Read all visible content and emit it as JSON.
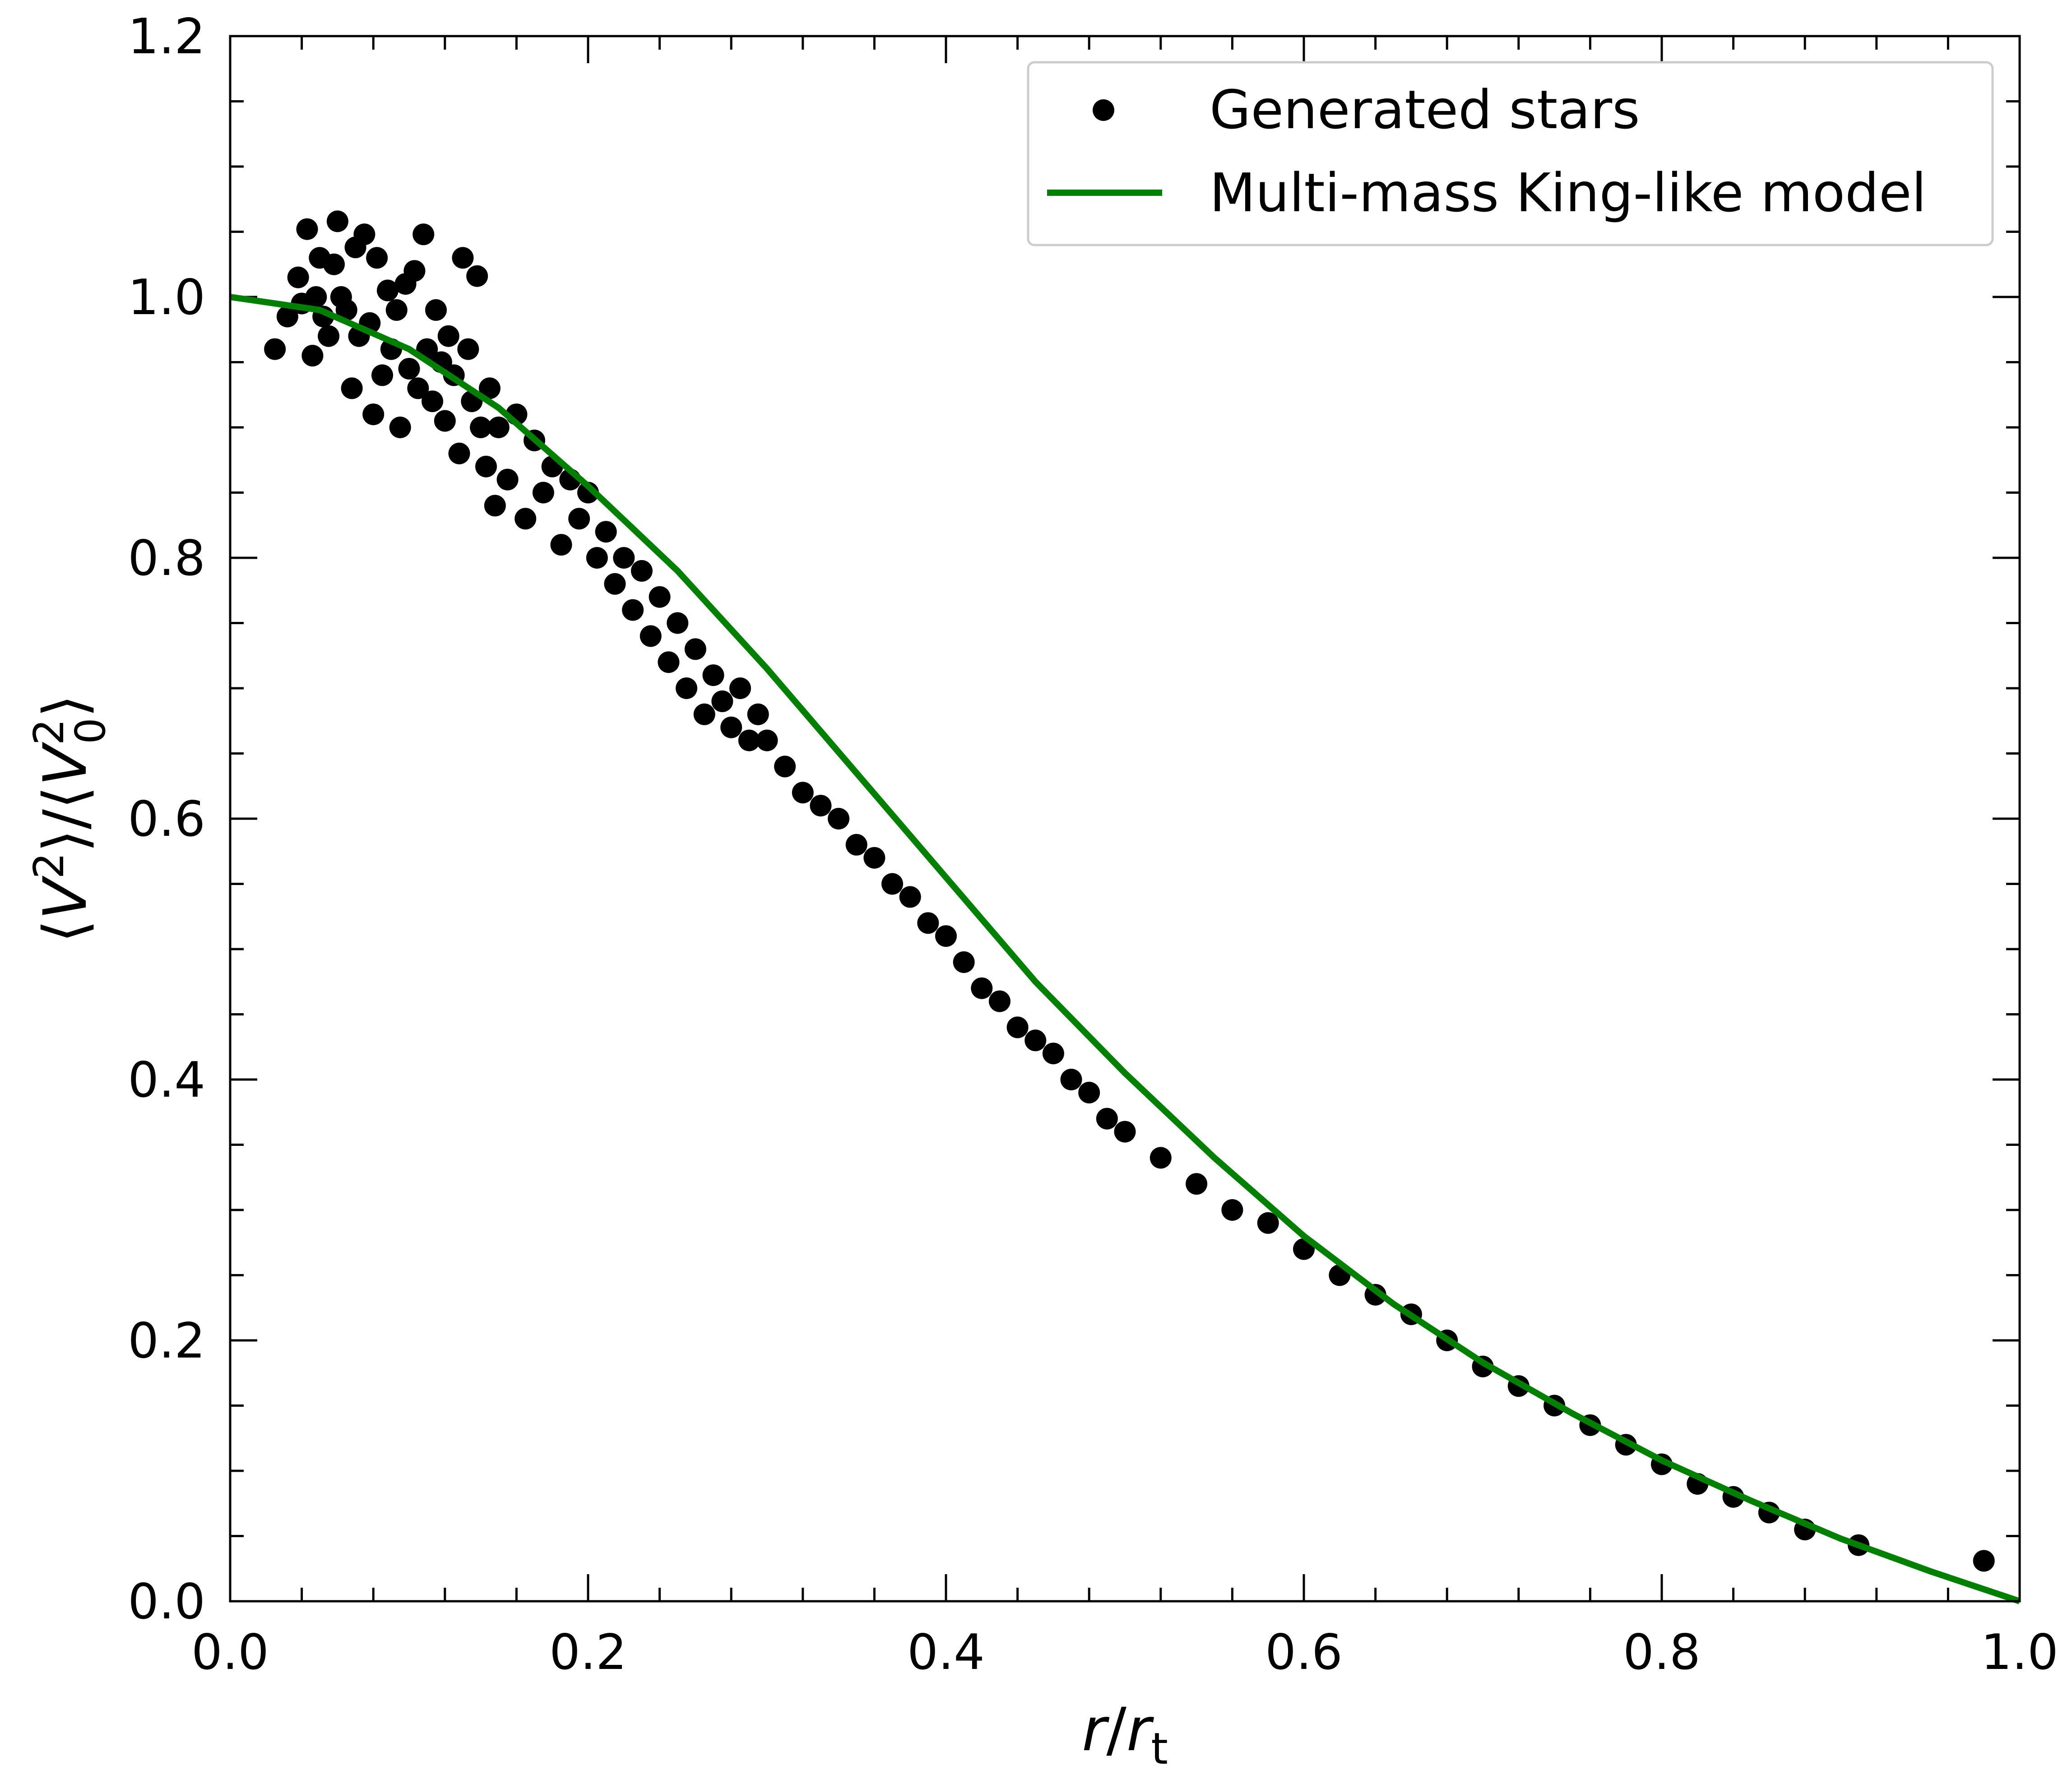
{
  "chart_data": {
    "type": "scatter",
    "title": "",
    "xlabel": "r/rt",
    "ylabel": "⟨V2⟩/⟨V02⟩",
    "xlim": [
      0.0,
      1.0
    ],
    "ylim": [
      0.0,
      1.2
    ],
    "x_ticks": [
      "0.0",
      "0.2",
      "0.4",
      "0.6",
      "0.8",
      "1.0"
    ],
    "y_ticks": [
      "0.0",
      "0.2",
      "0.4",
      "0.6",
      "0.8",
      "1.0",
      "1.2"
    ],
    "grid": false,
    "legend_position": "top-right",
    "colors": {
      "points": "#000000",
      "model": "#008000"
    },
    "series": [
      {
        "name": "Generated stars",
        "kind": "scatter",
        "x": [
          0.025,
          0.032,
          0.038,
          0.04,
          0.043,
          0.046,
          0.048,
          0.05,
          0.052,
          0.055,
          0.058,
          0.06,
          0.062,
          0.065,
          0.068,
          0.07,
          0.072,
          0.075,
          0.078,
          0.08,
          0.082,
          0.085,
          0.088,
          0.09,
          0.093,
          0.095,
          0.098,
          0.1,
          0.103,
          0.105,
          0.108,
          0.11,
          0.113,
          0.115,
          0.118,
          0.12,
          0.122,
          0.125,
          0.128,
          0.13,
          0.133,
          0.135,
          0.138,
          0.14,
          0.143,
          0.145,
          0.148,
          0.15,
          0.155,
          0.16,
          0.165,
          0.17,
          0.175,
          0.18,
          0.185,
          0.19,
          0.195,
          0.2,
          0.205,
          0.21,
          0.215,
          0.22,
          0.225,
          0.23,
          0.235,
          0.24,
          0.245,
          0.25,
          0.255,
          0.26,
          0.265,
          0.27,
          0.275,
          0.28,
          0.285,
          0.29,
          0.295,
          0.3,
          0.31,
          0.32,
          0.33,
          0.34,
          0.35,
          0.36,
          0.37,
          0.38,
          0.39,
          0.4,
          0.41,
          0.42,
          0.43,
          0.44,
          0.45,
          0.46,
          0.47,
          0.48,
          0.49,
          0.5,
          0.52,
          0.54,
          0.56,
          0.58,
          0.6,
          0.62,
          0.64,
          0.66,
          0.68,
          0.7,
          0.72,
          0.74,
          0.76,
          0.78,
          0.8,
          0.82,
          0.84,
          0.86,
          0.88,
          0.91,
          0.98
        ],
        "y": [
          0.96,
          0.985,
          1.015,
          0.995,
          1.052,
          0.955,
          1.0,
          1.03,
          0.985,
          0.97,
          1.025,
          1.058,
          1.0,
          0.99,
          0.93,
          1.038,
          0.97,
          1.048,
          0.98,
          0.91,
          1.03,
          0.94,
          1.005,
          0.96,
          0.99,
          0.9,
          1.01,
          0.945,
          1.02,
          0.93,
          1.048,
          0.96,
          0.92,
          0.99,
          0.95,
          0.905,
          0.97,
          0.94,
          0.88,
          1.03,
          0.96,
          0.92,
          1.016,
          0.9,
          0.87,
          0.93,
          0.84,
          0.9,
          0.86,
          0.91,
          0.83,
          0.89,
          0.85,
          0.87,
          0.81,
          0.86,
          0.83,
          0.85,
          0.8,
          0.82,
          0.78,
          0.8,
          0.76,
          0.79,
          0.74,
          0.77,
          0.72,
          0.75,
          0.7,
          0.73,
          0.68,
          0.71,
          0.69,
          0.67,
          0.7,
          0.66,
          0.68,
          0.66,
          0.64,
          0.62,
          0.61,
          0.6,
          0.58,
          0.57,
          0.55,
          0.54,
          0.52,
          0.51,
          0.49,
          0.47,
          0.46,
          0.44,
          0.43,
          0.42,
          0.4,
          0.39,
          0.37,
          0.36,
          0.34,
          0.32,
          0.3,
          0.29,
          0.27,
          0.25,
          0.235,
          0.22,
          0.2,
          0.18,
          0.165,
          0.15,
          0.135,
          0.12,
          0.105,
          0.09,
          0.08,
          0.068,
          0.055,
          0.043,
          0.031
        ]
      },
      {
        "name": "Multi-mass King-like model",
        "kind": "line",
        "x": [
          0.0,
          0.05,
          0.1,
          0.15,
          0.2,
          0.25,
          0.3,
          0.35,
          0.4,
          0.45,
          0.5,
          0.55,
          0.6,
          0.65,
          0.7,
          0.75,
          0.8,
          0.85,
          0.9,
          0.95,
          1.0
        ],
        "y": [
          1.0,
          0.99,
          0.96,
          0.915,
          0.855,
          0.79,
          0.715,
          0.635,
          0.555,
          0.475,
          0.405,
          0.34,
          0.28,
          0.228,
          0.183,
          0.144,
          0.108,
          0.077,
          0.048,
          0.023,
          0.0
        ]
      }
    ]
  }
}
